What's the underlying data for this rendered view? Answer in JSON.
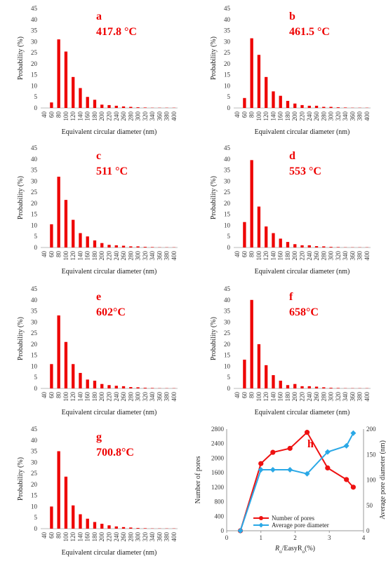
{
  "chart_data": [
    {
      "type": "bar",
      "panel": "a",
      "temperature": "417.8 °C",
      "categories": [
        "40",
        "60",
        "80",
        "100",
        "120",
        "140",
        "160",
        "180",
        "200",
        "220",
        "240",
        "260",
        "280",
        "300",
        "320",
        "340",
        "360",
        "380",
        "400"
      ],
      "values": [
        0,
        2.5,
        31,
        25.5,
        14,
        9,
        5,
        3.7,
        1.5,
        1.3,
        1.0,
        0.7,
        0.5,
        0.3,
        0.2,
        0.1,
        0.1,
        0.1,
        0.1
      ],
      "xlabel": "Equivalent circular diameter (nm)",
      "ylabel": "Probability (%)",
      "ylim": [
        0,
        45
      ],
      "yticks": [
        0,
        5,
        10,
        15,
        20,
        25,
        30,
        35,
        40,
        45
      ],
      "color": "#ee0000"
    },
    {
      "type": "bar",
      "panel": "b",
      "temperature": "461.5 °C",
      "categories": [
        "40",
        "60",
        "80",
        "100",
        "120",
        "140",
        "160",
        "180",
        "200",
        "220",
        "240",
        "260",
        "280",
        "300",
        "320",
        "340",
        "360",
        "380",
        "400"
      ],
      "values": [
        0,
        4.5,
        31.5,
        24,
        14,
        7.5,
        5.5,
        3.2,
        2.0,
        1.3,
        1.0,
        1.0,
        0.5,
        0.5,
        0.3,
        0.2,
        0.1,
        0.1,
        0.1
      ],
      "xlabel": "Equivalent circular diameter (nm)",
      "ylabel": "Probability (%)",
      "ylim": [
        0,
        45
      ],
      "yticks": [
        0,
        5,
        10,
        15,
        20,
        25,
        30,
        35,
        40,
        45
      ],
      "color": "#ee0000"
    },
    {
      "type": "bar",
      "panel": "c",
      "temperature": "511 °C",
      "categories": [
        "40",
        "60",
        "80",
        "100",
        "120",
        "140",
        "160",
        "180",
        "200",
        "220",
        "240",
        "260",
        "280",
        "300",
        "320",
        "340",
        "360",
        "380",
        "400"
      ],
      "values": [
        0,
        10.5,
        32,
        21.5,
        12.5,
        6.5,
        5,
        3.2,
        2.0,
        1.2,
        1.0,
        0.8,
        0.5,
        0.5,
        0.3,
        0.2,
        0.1,
        0.1,
        0.1
      ],
      "xlabel": "Equivalent circular diameter (nm)",
      "ylabel": "Probability (%)",
      "ylim": [
        0,
        45
      ],
      "yticks": [
        0,
        5,
        10,
        15,
        20,
        25,
        30,
        35,
        40,
        45
      ],
      "color": "#ee0000"
    },
    {
      "type": "bar",
      "panel": "d",
      "temperature": "553 °C",
      "categories": [
        "40",
        "60",
        "80",
        "100",
        "120",
        "140",
        "160",
        "180",
        "200",
        "220",
        "240",
        "260",
        "280",
        "300",
        "320",
        "340",
        "360",
        "380",
        "400"
      ],
      "values": [
        0,
        11.5,
        39.5,
        18.5,
        9.5,
        6.5,
        4,
        2.5,
        1.5,
        1.0,
        1.0,
        0.6,
        0.5,
        0.3,
        0.2,
        0.1,
        0.1,
        0.1,
        0.1
      ],
      "xlabel": "Equivalent circular diameter (nm)",
      "ylabel": "Probability (%)",
      "ylim": [
        0,
        45
      ],
      "yticks": [
        0,
        5,
        10,
        15,
        20,
        25,
        30,
        35,
        40,
        45
      ],
      "color": "#ee0000"
    },
    {
      "type": "bar",
      "panel": "e",
      "temperature": "602°C",
      "categories": [
        "40",
        "60",
        "80",
        "100",
        "120",
        "140",
        "160",
        "180",
        "200",
        "220",
        "240",
        "260",
        "280",
        "300",
        "320",
        "340",
        "360",
        "380",
        "400"
      ],
      "values": [
        0,
        11,
        33,
        21,
        11,
        7,
        4,
        3.5,
        2.0,
        1.5,
        1.2,
        1.0,
        0.6,
        0.5,
        0.3,
        0.2,
        0.1,
        0.1,
        0.1
      ],
      "xlabel": "Equivalent circular diameter (nm)",
      "ylabel": "Probability (%)",
      "ylim": [
        0,
        45
      ],
      "yticks": [
        0,
        5,
        10,
        15,
        20,
        25,
        30,
        35,
        40,
        45
      ],
      "color": "#ee0000"
    },
    {
      "type": "bar",
      "panel": "f",
      "temperature": "658°C",
      "categories": [
        "40",
        "60",
        "80",
        "100",
        "120",
        "140",
        "160",
        "180",
        "200",
        "220",
        "240",
        "260",
        "280",
        "300",
        "320",
        "340",
        "360",
        "380",
        "400"
      ],
      "values": [
        0,
        13,
        40,
        20,
        10.5,
        6,
        3.5,
        1.5,
        2.0,
        1.0,
        1.0,
        0.8,
        0.5,
        0.3,
        0.2,
        0.1,
        0.1,
        0.1,
        0.1
      ],
      "xlabel": "Equivalent circular diameter (nm)",
      "ylabel": "Probability (%)",
      "ylim": [
        0,
        45
      ],
      "yticks": [
        0,
        5,
        10,
        15,
        20,
        25,
        30,
        35,
        40,
        45
      ],
      "color": "#ee0000"
    },
    {
      "type": "bar",
      "panel": "g",
      "temperature": "700.8°C",
      "categories": [
        "40",
        "60",
        "80",
        "100",
        "120",
        "140",
        "160",
        "180",
        "200",
        "220",
        "240",
        "260",
        "280",
        "300",
        "320",
        "340",
        "360",
        "380",
        "400"
      ],
      "values": [
        0,
        10,
        35,
        23.5,
        10.5,
        6.5,
        4.5,
        3.0,
        2.2,
        1.5,
        1.0,
        0.7,
        0.5,
        0.3,
        0.2,
        0.1,
        0.1,
        0.1,
        0.1
      ],
      "xlabel": "Equivalent circular diameter (nm)",
      "ylabel": "Probability (%)",
      "ylim": [
        0,
        45
      ],
      "yticks": [
        0,
        5,
        10,
        15,
        20,
        25,
        30,
        35,
        40,
        45
      ],
      "color": "#ee0000"
    },
    {
      "type": "line",
      "panel": "h",
      "xlabel_main": "R",
      "xlabel_sub": "o",
      "xlabel_mid": "/EasyR",
      "xlabel_sub2": "o",
      "xlabel_tail": "(%)",
      "ylabel_left": "Number of pores",
      "ylabel_right": "Average pore diameter (nm)",
      "xlim": [
        0,
        4
      ],
      "ylim_left": [
        0,
        2800
      ],
      "ylim_right": [
        0,
        200
      ],
      "xticks": [
        0,
        1,
        2,
        3,
        4
      ],
      "yticks_left": [
        0,
        400,
        800,
        1200,
        1600,
        2000,
        2400,
        2800
      ],
      "yticks_right": [
        0,
        50,
        100,
        150,
        200
      ],
      "legend_position": "bottom-center",
      "series": [
        {
          "name": "Number of pores",
          "axis": "left",
          "color": "#ee1111",
          "marker": "circle",
          "x": [
            0.4,
            1.0,
            1.35,
            1.85,
            2.35,
            2.95,
            3.5,
            3.7
          ],
          "y": [
            0,
            1850,
            2160,
            2270,
            2710,
            1730,
            1410,
            1200
          ]
        },
        {
          "name": "Average pore diameter",
          "axis": "right",
          "color": "#2aa8e6",
          "marker": "diamond",
          "x": [
            0.4,
            1.0,
            1.35,
            1.85,
            2.35,
            2.95,
            3.5,
            3.7
          ],
          "y": [
            0,
            120,
            120,
            120,
            112,
            155,
            167,
            192
          ]
        }
      ]
    }
  ]
}
